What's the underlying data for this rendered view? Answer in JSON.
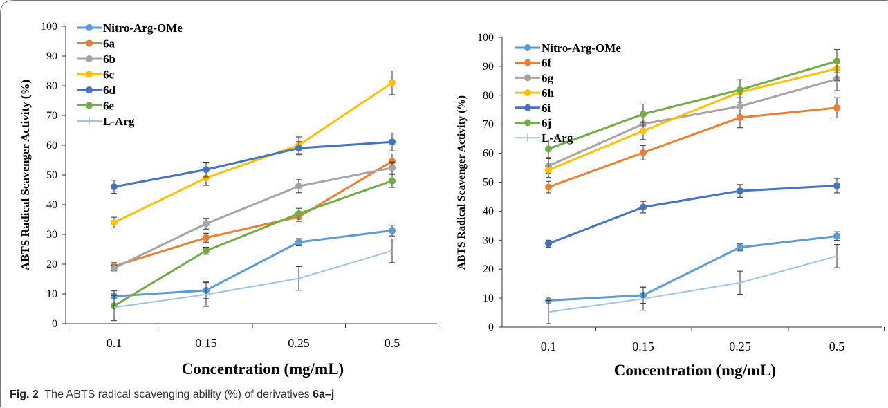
{
  "caption": {
    "label": "Fig. 2",
    "text": "The ABTS radical scavenging ability (%) of derivatives ",
    "bold": "6a–j"
  },
  "chart_data": [
    {
      "type": "line",
      "title": "",
      "xlabel": "Concentration (mg/mL)",
      "ylabel": "ABTS  Radical Scavenger Activity (%)",
      "categories": [
        "0.1",
        "0.15",
        "0.25",
        "0.5"
      ],
      "ylim": [
        0,
        100
      ],
      "yticks": [
        0,
        10,
        20,
        30,
        40,
        50,
        60,
        70,
        80,
        90,
        100
      ],
      "grid": false,
      "legend": "top-left",
      "series": [
        {
          "name": "Nitro-Arg-OMe",
          "color": "#5B9BD5",
          "values": [
            9.2,
            11.2,
            27.4,
            31.3
          ],
          "errors": [
            0.8,
            2.8,
            1.2,
            1.8
          ],
          "marker": "circle"
        },
        {
          "name": "6a",
          "color": "#ED7D31",
          "values": [
            19.3,
            28.9,
            35.9,
            54.6
          ],
          "errors": [
            1.2,
            1.5,
            1.5,
            2.5
          ],
          "marker": "circle"
        },
        {
          "name": "6b",
          "color": "#A5A5A5",
          "values": [
            18.7,
            33.6,
            46.2,
            52.4
          ],
          "errors": [
            1.0,
            1.8,
            2.2,
            2.0
          ],
          "marker": "circle"
        },
        {
          "name": "6c",
          "color": "#FFC000",
          "values": [
            34.0,
            49.0,
            60.0,
            81.0
          ],
          "errors": [
            1.8,
            2.5,
            2.8,
            4.0
          ],
          "marker": "circle"
        },
        {
          "name": "6d",
          "color": "#4472C4",
          "values": [
            46.0,
            51.8,
            59.0,
            61.1
          ],
          "errors": [
            2.2,
            2.5,
            2.2,
            3.0
          ],
          "marker": "circle"
        },
        {
          "name": "6e",
          "color": "#70AD47",
          "values": [
            6.0,
            24.5,
            37.0,
            48.0
          ],
          "errors": [
            5.0,
            1.2,
            1.8,
            2.2
          ],
          "marker": "circle"
        },
        {
          "name": "L-Arg",
          "color": "#9DC3E6",
          "values": [
            5.5,
            9.8,
            15.2,
            24.5
          ],
          "errors": [
            4.0,
            4.0,
            4.0,
            4.0
          ],
          "marker": "none"
        }
      ]
    },
    {
      "type": "line",
      "title": "",
      "xlabel": "Concentration (mg/mL)",
      "ylabel": "ABTS Radical Scavenger Activity (%)",
      "categories": [
        "0.1",
        "0.15",
        "0.25",
        "0.5"
      ],
      "ylim": [
        0,
        100
      ],
      "yticks": [
        0,
        10,
        20,
        30,
        40,
        50,
        60,
        70,
        80,
        90,
        100
      ],
      "grid": false,
      "legend": "top-left",
      "series": [
        {
          "name": "Nitro-Arg-OMe",
          "color": "#5B9BD5",
          "values": [
            9.2,
            11.0,
            27.5,
            31.4
          ],
          "errors": [
            0.8,
            2.8,
            1.2,
            1.5
          ],
          "marker": "circle"
        },
        {
          "name": "6f",
          "color": "#ED7D31",
          "values": [
            48.3,
            60.2,
            72.3,
            75.7
          ],
          "errors": [
            2.0,
            2.5,
            3.5,
            3.5
          ],
          "marker": "circle"
        },
        {
          "name": "6g",
          "color": "#A5A5A5",
          "values": [
            55.6,
            70.1,
            76.2,
            85.6
          ],
          "errors": [
            2.5,
            3.0,
            3.0,
            4.0
          ],
          "marker": "circle"
        },
        {
          "name": "6h",
          "color": "#FFC000",
          "values": [
            54.2,
            67.7,
            81.1,
            89.2
          ],
          "errors": [
            2.5,
            3.0,
            3.5,
            4.0
          ],
          "marker": "circle"
        },
        {
          "name": "6i",
          "color": "#4472C4",
          "values": [
            28.8,
            41.4,
            47.0,
            48.8
          ],
          "errors": [
            1.2,
            2.0,
            2.2,
            2.5
          ],
          "marker": "circle"
        },
        {
          "name": "6j",
          "color": "#70AD47",
          "values": [
            61.5,
            73.5,
            81.9,
            91.8
          ],
          "errors": [
            3.0,
            3.5,
            3.5,
            4.0
          ],
          "marker": "circle"
        },
        {
          "name": "L-Arg",
          "color": "#9DC3E6",
          "values": [
            5.2,
            9.8,
            15.3,
            24.5
          ],
          "errors": [
            4.0,
            4.0,
            4.0,
            4.0
          ],
          "marker": "none"
        }
      ]
    }
  ]
}
